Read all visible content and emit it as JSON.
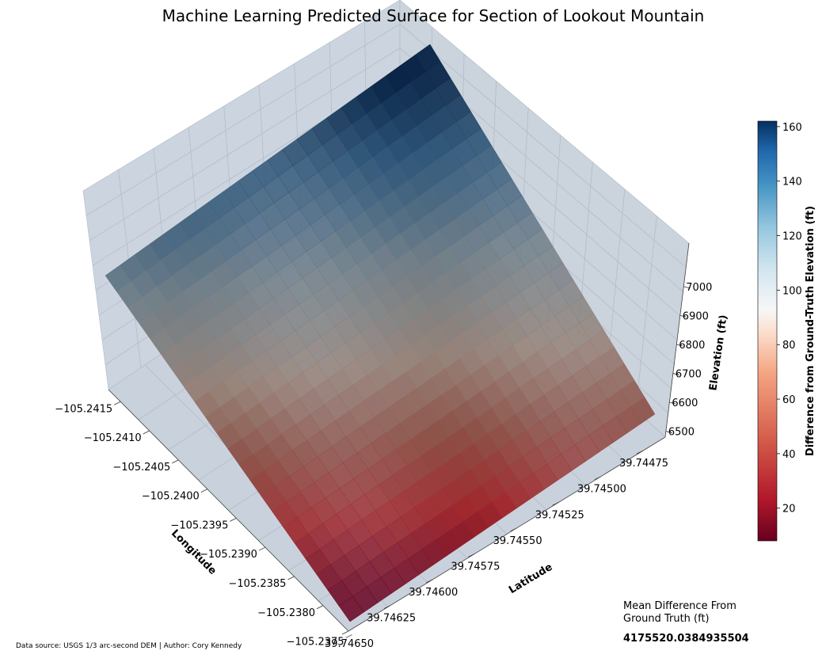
{
  "chart_data": {
    "type": "surface3d",
    "title": "Machine Learning Predicted Surface for Section of Lookout Mountain",
    "xlabel": "Longitude",
    "ylabel": "Latitude",
    "zlabel": "Elevation (ft)",
    "x_ticks": [
      "−105.2415",
      "−105.2410",
      "−105.2405",
      "−105.2400",
      "−105.2395",
      "−105.2390",
      "−105.2385",
      "−105.2380",
      "−105.2375"
    ],
    "y_ticks": [
      "39.74475",
      "39.74500",
      "39.74525",
      "39.74550",
      "39.74575",
      "39.74600",
      "39.74625",
      "39.74650"
    ],
    "z_ticks": [
      "6500",
      "6600",
      "6700",
      "6800",
      "6900",
      "7000"
    ],
    "xlim": [
      -105.2417,
      -105.2375
    ],
    "ylim": [
      39.7446,
      39.7465
    ],
    "zlim": [
      6480,
      7150
    ],
    "colorbar": {
      "label": "Difference from Ground-Truth Elevation (ft)",
      "ticks": [
        "20",
        "40",
        "60",
        "80",
        "100",
        "120",
        "140",
        "160"
      ],
      "range": [
        8,
        162
      ],
      "colormap": "RdBu"
    },
    "annotation": {
      "label": "Mean Difference From Ground Truth (ft)",
      "value": "4175520.0384935504"
    },
    "footer": "Data source: USGS 1/3 arc-second DEM | Author: Cory Kennedy",
    "pane_color": "#ccd5df",
    "grid": true
  }
}
